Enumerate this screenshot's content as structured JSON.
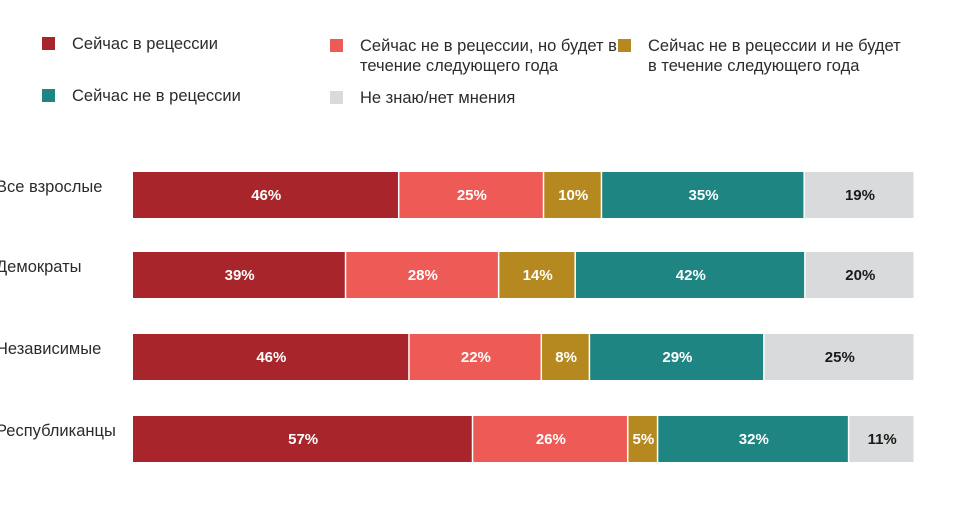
{
  "chart_data": {
    "type": "bar",
    "orientation": "horizontal",
    "stacked": true,
    "categories": [
      "Все взрослые",
      "Демократы",
      "Независимые",
      "Республиканцы"
    ],
    "series": [
      {
        "name": "Сейчас в рецессии",
        "color": "#a8262b",
        "values": [
          46,
          39,
          46,
          57
        ],
        "labels": [
          "46%",
          "39%",
          "46%",
          "57%"
        ]
      },
      {
        "name": "Сейчас не в рецессии, но будет в течение следующего года",
        "color": "#ee5a55",
        "values": [
          25,
          28,
          22,
          26
        ],
        "labels": [
          "25%",
          "28%",
          "22%",
          "26%"
        ]
      },
      {
        "name": "Сейчас не в рецессии и не будет в течение следующего года",
        "color": "#b5891f",
        "values": [
          10,
          14,
          8,
          5
        ],
        "labels": [
          "10%",
          "14%",
          "8%",
          "5%"
        ]
      },
      {
        "name": "Сейчас не в рецессии",
        "color": "#1e8583",
        "values": [
          35,
          42,
          29,
          32
        ],
        "labels": [
          "35%",
          "42%",
          "29%",
          "32%"
        ]
      },
      {
        "name": "Не знаю/нет мнения",
        "color": "#d9dadb",
        "values": [
          19,
          20,
          25,
          11
        ],
        "labels": [
          "19%",
          "20%",
          "25%",
          "11%"
        ]
      }
    ],
    "legend": "top",
    "grid": false
  }
}
